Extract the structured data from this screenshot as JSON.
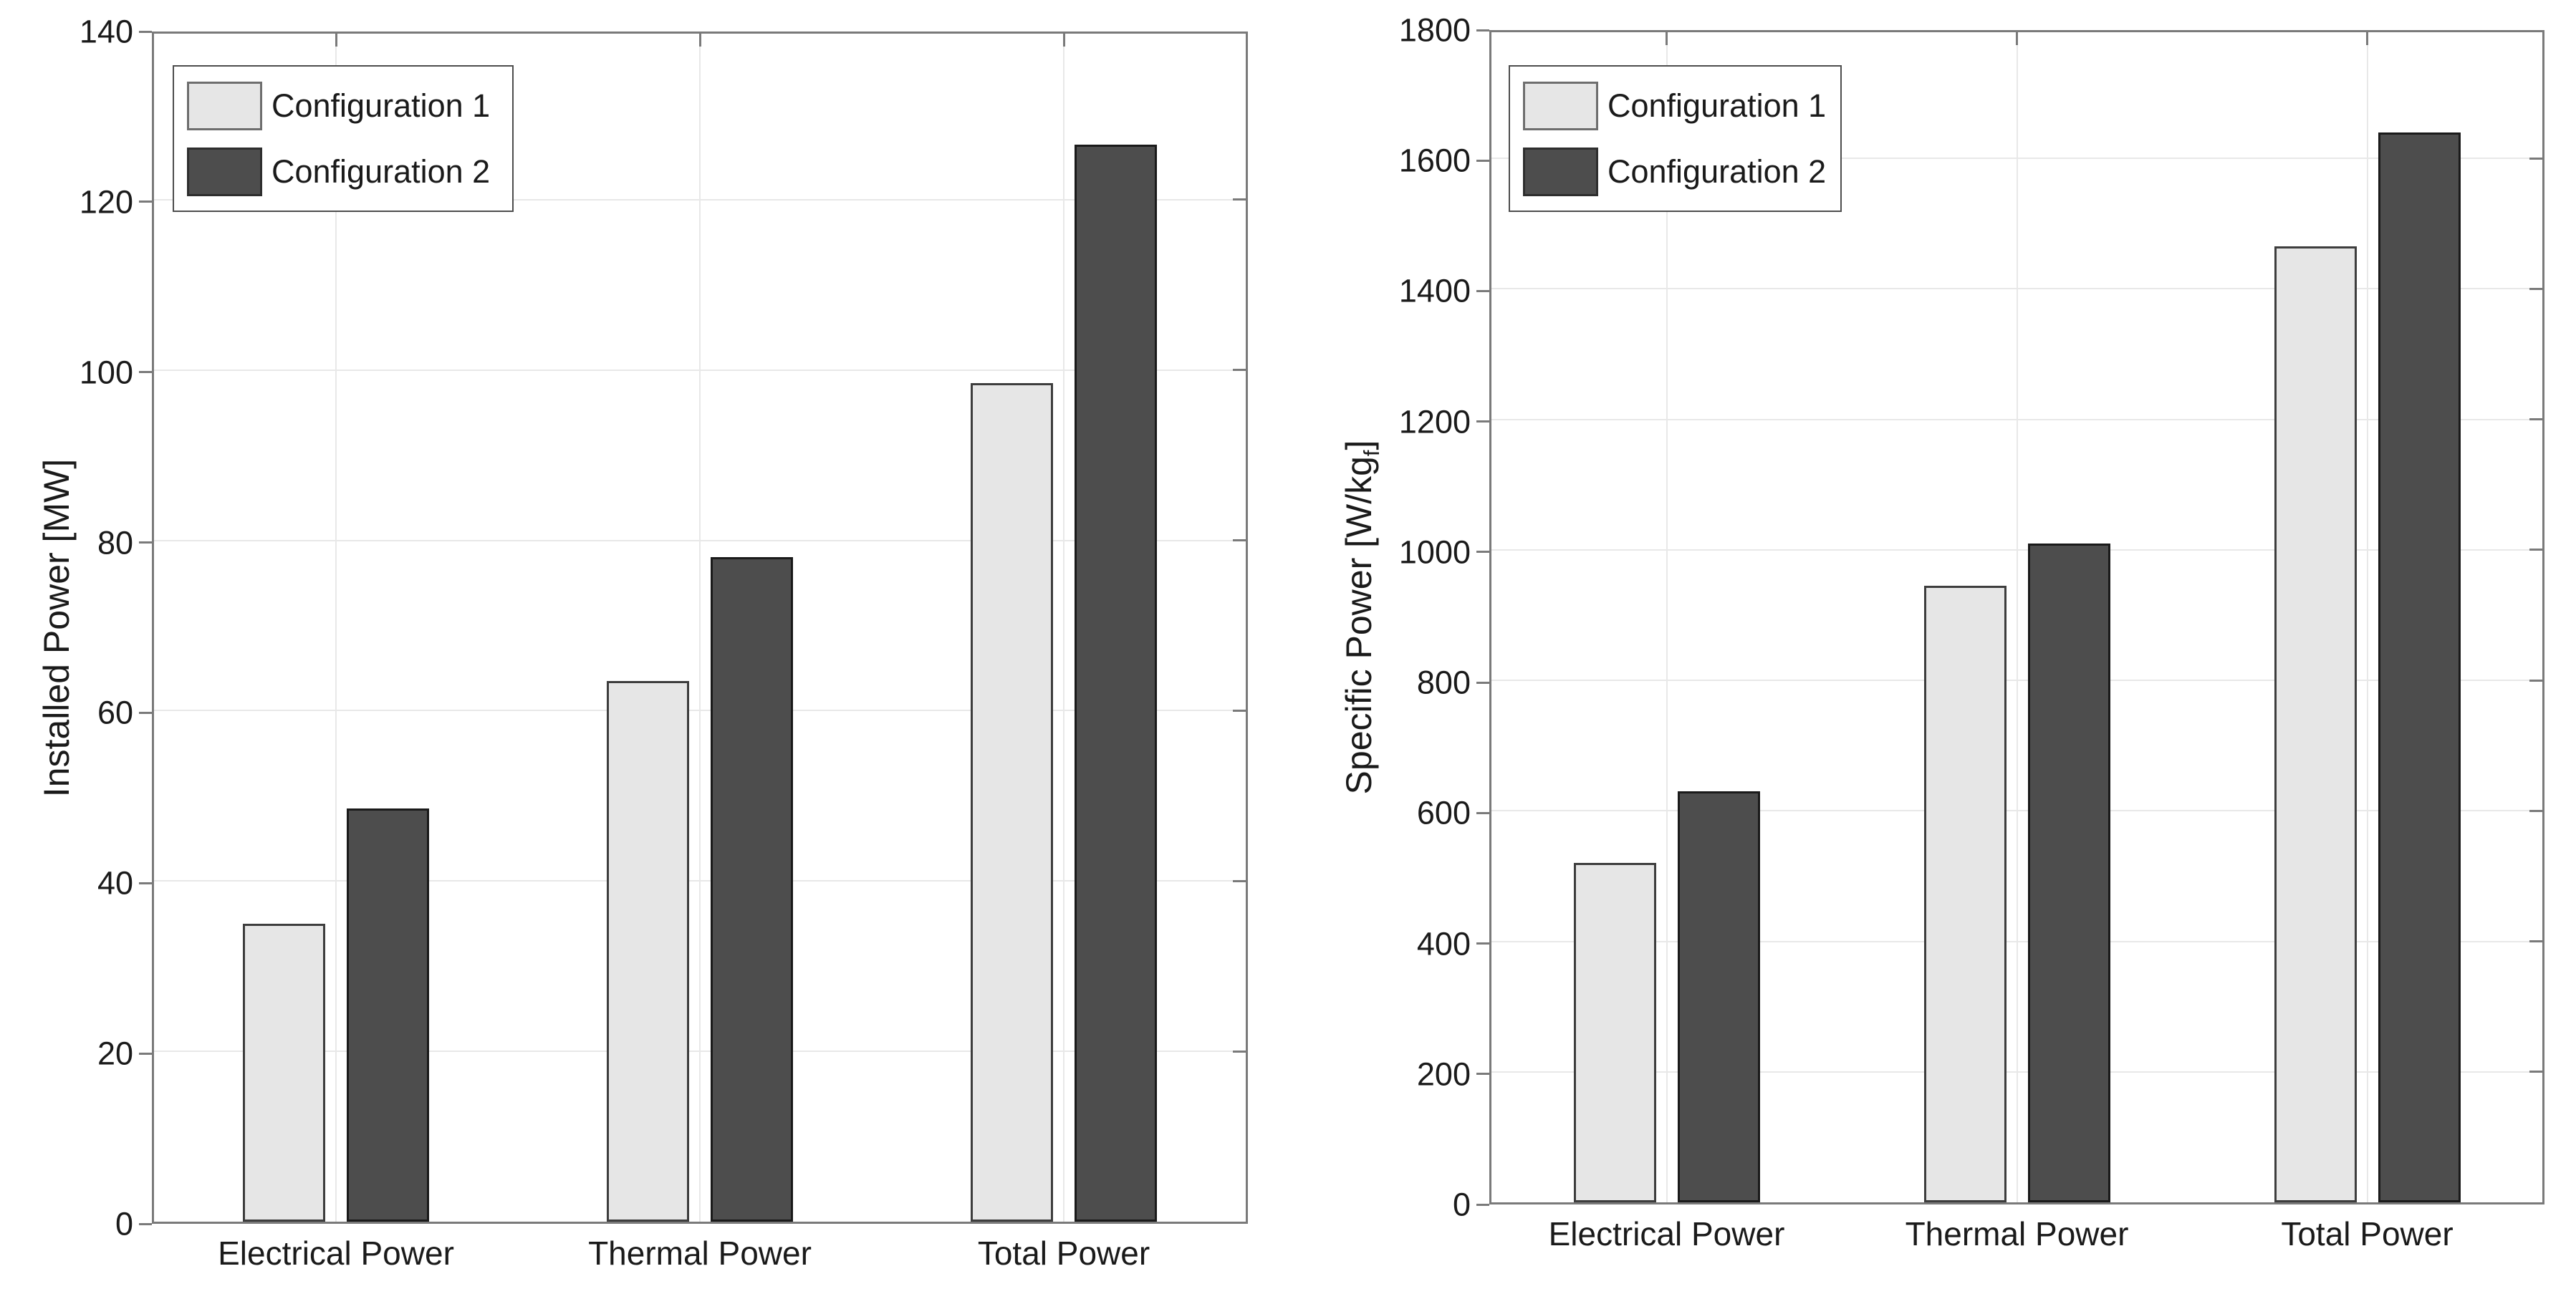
{
  "figure": {
    "background": "#ffffff",
    "axis_color": "#7a7a7a",
    "grid_color": "#e8e8e8",
    "text_color": "#1a1a1a"
  },
  "chart_data": [
    {
      "id": "installed-power",
      "type": "bar",
      "title": "",
      "xlabel": "",
      "ylabel": "Installed Power [MW]",
      "ylabel_parts": {
        "pre": "Installed Power [MW]",
        "sub": "",
        "post": ""
      },
      "ylim": [
        0,
        140
      ],
      "yticks": [
        0,
        20,
        40,
        60,
        80,
        100,
        120,
        140
      ],
      "grid": true,
      "legend_position": "top-left",
      "categories": [
        "Electrical Power",
        "Thermal Power",
        "Total Power"
      ],
      "series": [
        {
          "name": "Configuration 1",
          "values": [
            35,
            63.5,
            98.5
          ],
          "fill": "#e6e6e6",
          "edge": "#3d3d3d"
        },
        {
          "name": "Configuration 2",
          "values": [
            48.5,
            78,
            126.5
          ],
          "fill": "#4d4d4d",
          "edge": "#1a1a1a"
        }
      ]
    },
    {
      "id": "specific-power",
      "type": "bar",
      "title": "",
      "xlabel": "",
      "ylabel": "Specific Power [W/kgf]",
      "ylabel_parts": {
        "pre": "Specific Power [W/kg",
        "sub": "f",
        "post": "]"
      },
      "ylim": [
        0,
        1800
      ],
      "yticks": [
        0,
        200,
        400,
        600,
        800,
        1000,
        1200,
        1400,
        1600,
        1800
      ],
      "grid": true,
      "legend_position": "top-left",
      "categories": [
        "Electrical Power",
        "Thermal Power",
        "Total Power"
      ],
      "series": [
        {
          "name": "Configuration 1",
          "values": [
            520,
            945,
            1465
          ],
          "fill": "#e6e6e6",
          "edge": "#3d3d3d"
        },
        {
          "name": "Configuration 2",
          "values": [
            630,
            1010,
            1640
          ],
          "fill": "#4d4d4d",
          "edge": "#1a1a1a"
        }
      ]
    }
  ]
}
